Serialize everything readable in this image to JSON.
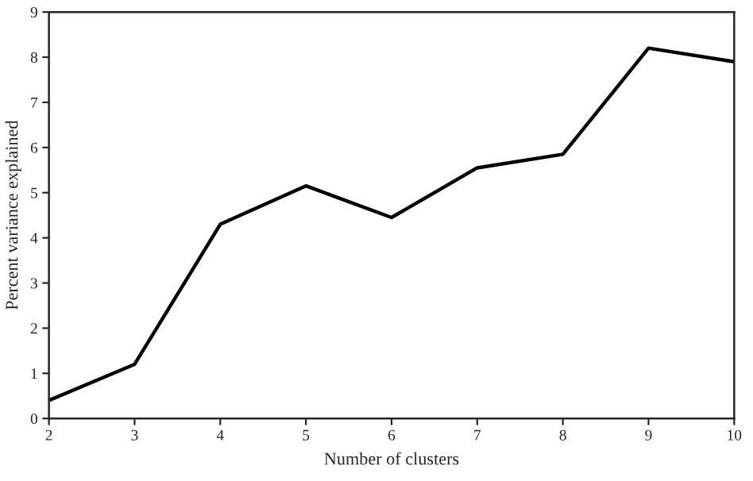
{
  "chart_data": {
    "type": "line",
    "xlabel": "Number of clusters",
    "ylabel": "Percent variance explained",
    "x": [
      2,
      3,
      4,
      5,
      6,
      7,
      8,
      9,
      10
    ],
    "series": [
      {
        "color": "#000000",
        "values": [
          0.4,
          1.2,
          4.3,
          5.15,
          4.45,
          5.55,
          5.85,
          8.2,
          7.9
        ]
      }
    ],
    "xlim": [
      2,
      10
    ],
    "xticks": [
      2,
      3,
      4,
      5,
      6,
      7,
      8,
      9,
      10
    ],
    "ylim": [
      0,
      9
    ],
    "yticks": [
      0,
      1,
      2,
      3,
      4,
      5,
      6,
      7,
      8,
      9
    ],
    "marker": "none",
    "line_style": "solid"
  }
}
